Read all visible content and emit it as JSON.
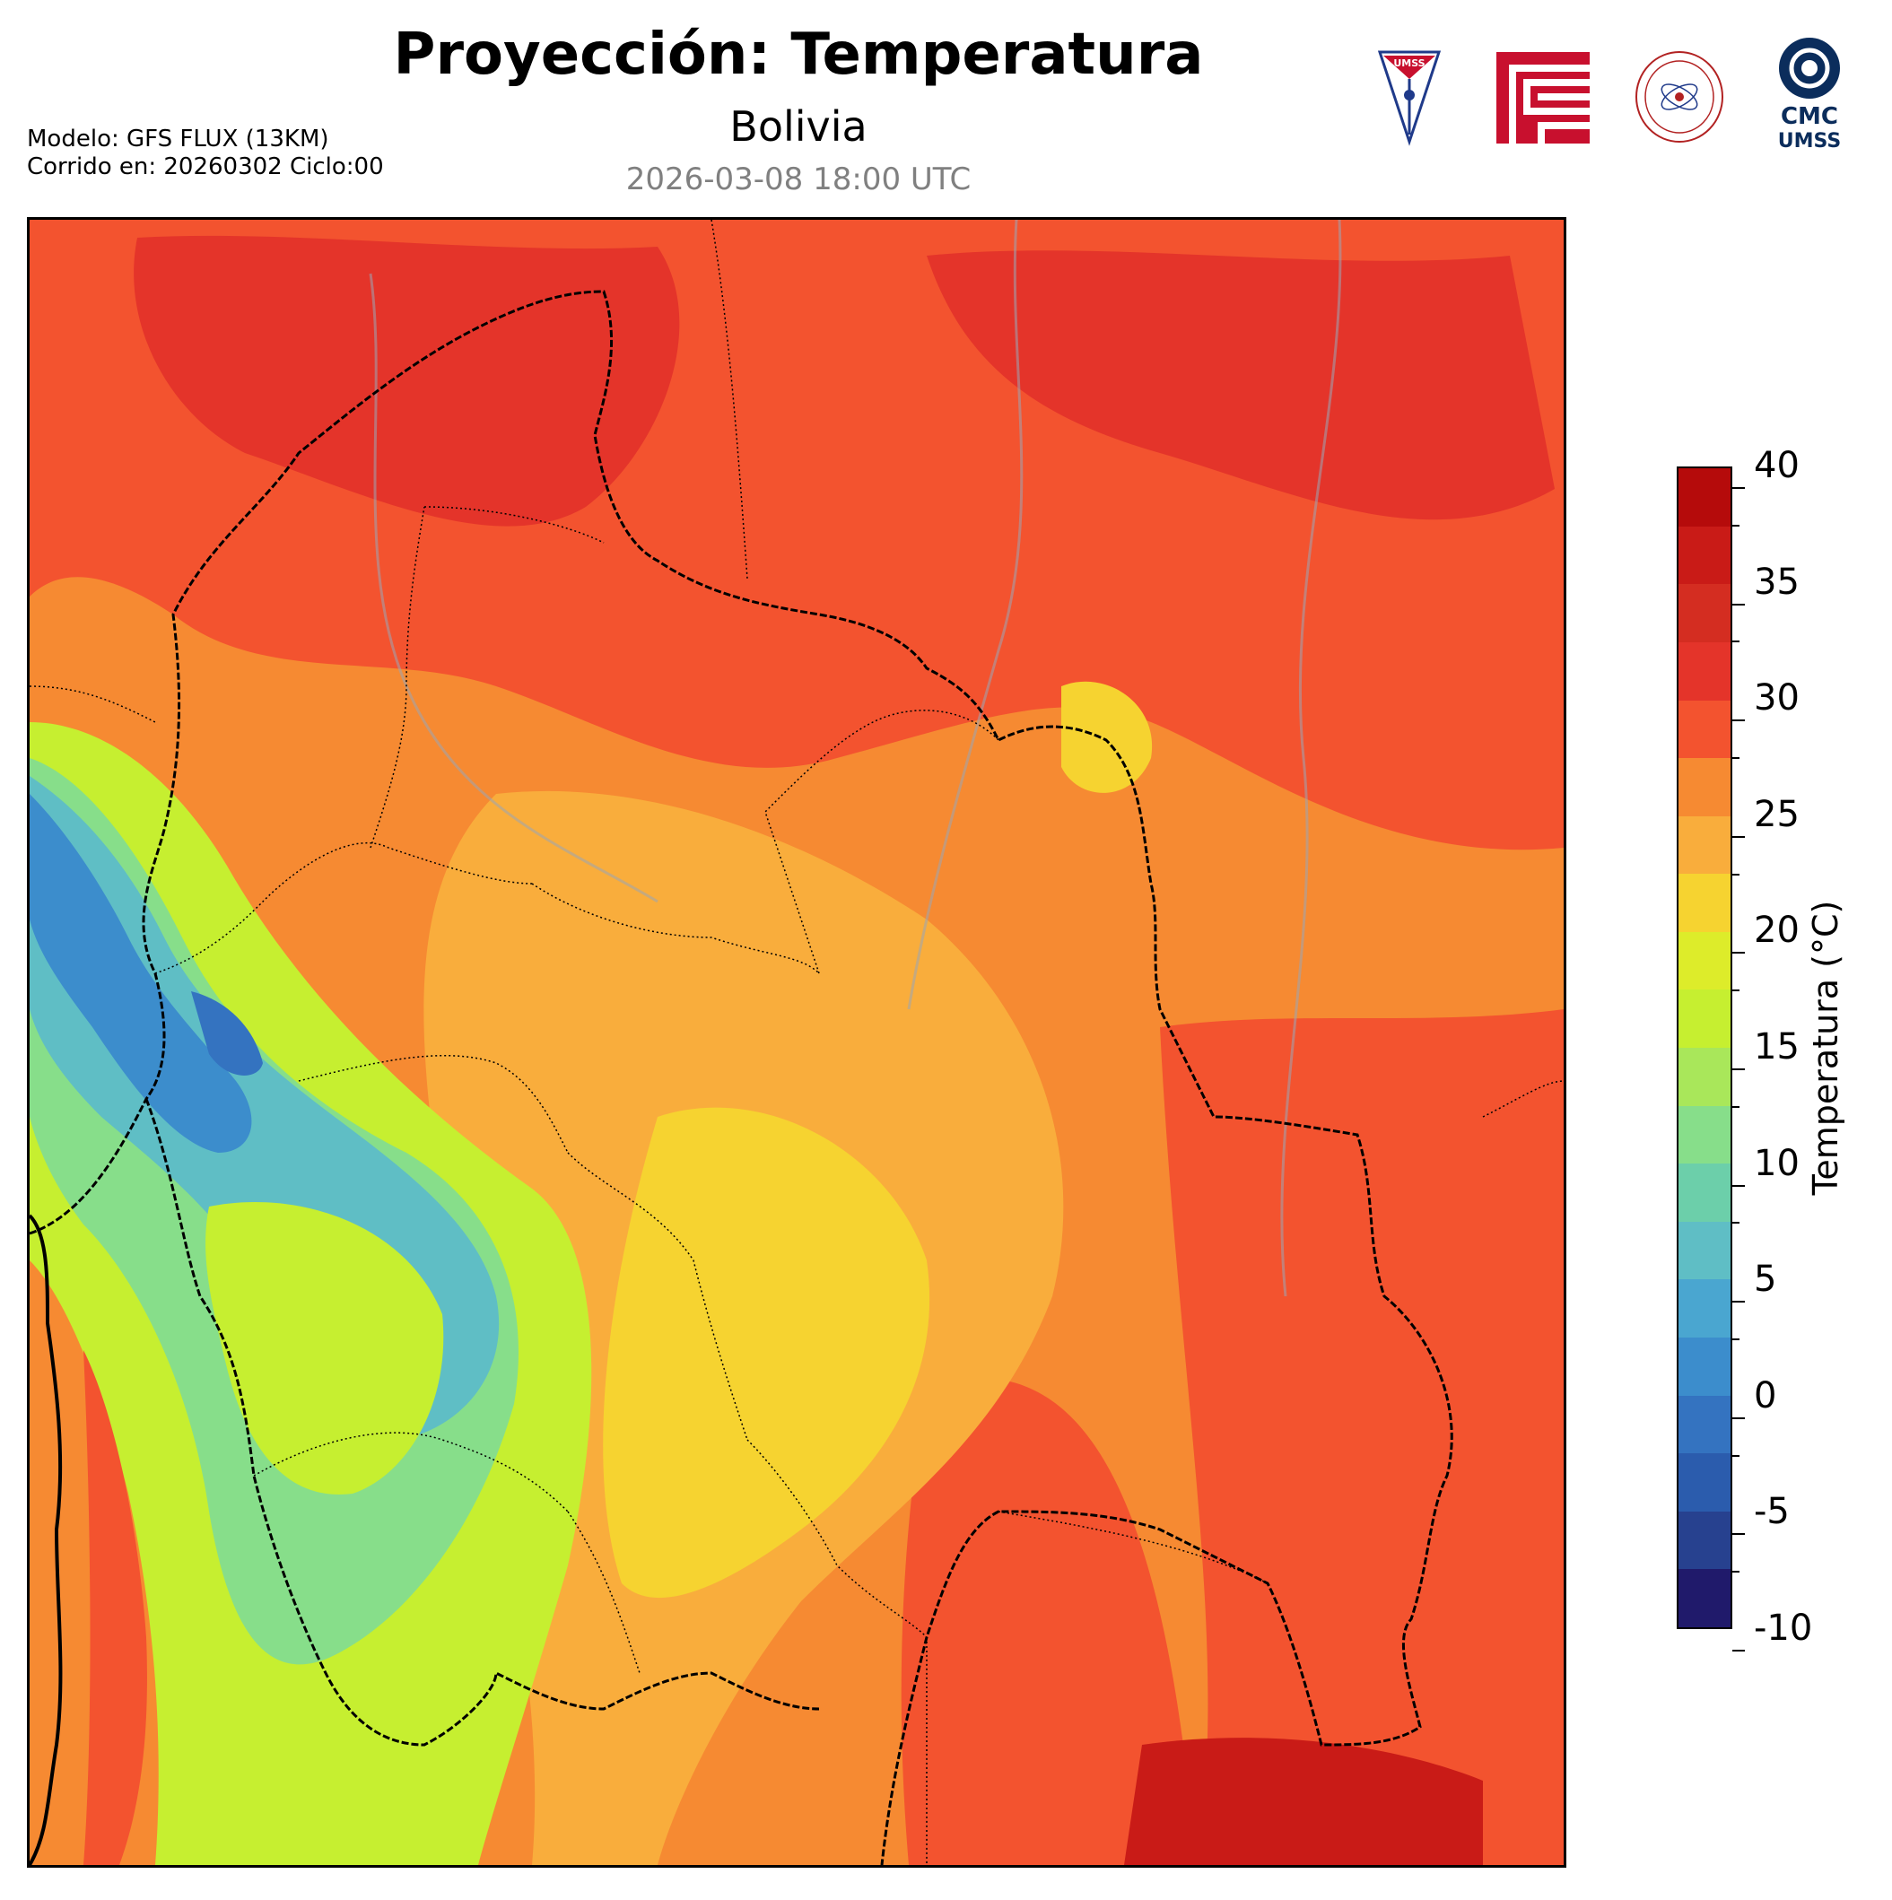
{
  "header": {
    "title": "Proyección: Temperatura",
    "subtitle": "Bolivia",
    "datetime": "2026-03-08 18:00 UTC",
    "model_line": "Modelo: GFS FLUX (13KM)",
    "run_line": "Corrido en: 20260302 Ciclo:00"
  },
  "logos": [
    {
      "name": "umss-logo",
      "text": "UMSS",
      "color": "#1f3a8a"
    },
    {
      "name": "fcyt-logo",
      "color": "#c8102e"
    },
    {
      "name": "departamento-fisica-logo",
      "color": "#b22222"
    },
    {
      "name": "cmc-umss-logo",
      "line1": "CMC",
      "line2": "UMSS",
      "color": "#0b2d5c"
    }
  ],
  "colorbar": {
    "label": "Temperatura (°C)",
    "min": -10,
    "max": 40,
    "ticks": [
      "40",
      "35",
      "30",
      "25",
      "20",
      "15",
      "10",
      "5",
      "0",
      "-5",
      "-10"
    ],
    "colors": [
      "#201a6b",
      "#27418f",
      "#2b5cad",
      "#3473c0",
      "#3c8dcc",
      "#4aa6d0",
      "#5fbec5",
      "#6ccfaa",
      "#87de8a",
      "#a9e75a",
      "#c6ef30",
      "#ddec2a",
      "#f6d330",
      "#f9ad3c",
      "#f68a32",
      "#f3532f",
      "#e4342a",
      "#d42d21",
      "#c91b17",
      "#b50b0b"
    ]
  },
  "map": {
    "region": "Bolivia",
    "variable": "Temperatura",
    "background_colors": {
      "hot": "#e4342a",
      "warm": "#f68a32",
      "mild": "#f9ad3c",
      "yellow": "#f6d330",
      "lime": "#c6ef30",
      "green": "#87de8a",
      "cool": "#5fbec5",
      "cold": "#3c8dcc",
      "veryhot": "#c91b17"
    }
  }
}
